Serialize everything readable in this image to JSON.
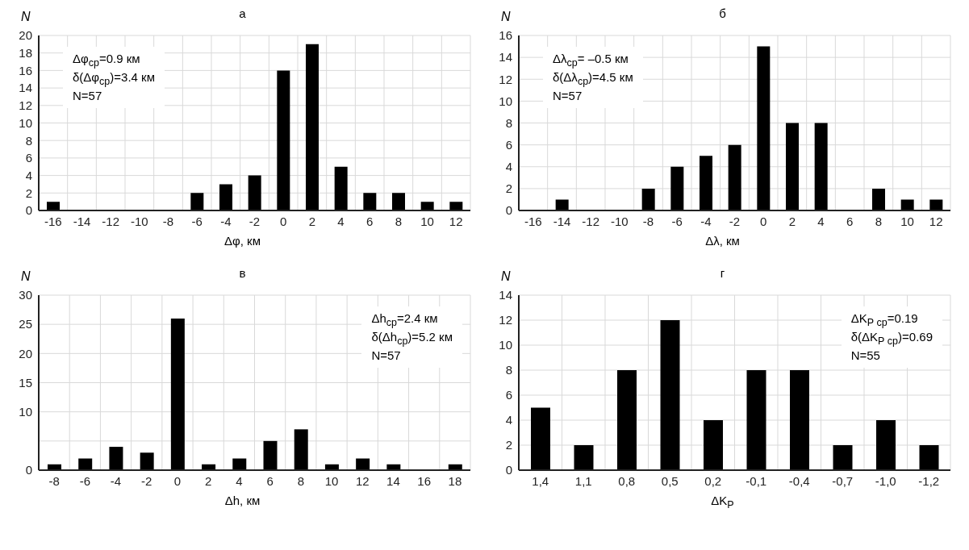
{
  "chart_data": [
    {
      "type": "bar",
      "title": "а",
      "xlabel": "Δφ, км",
      "ylabel": "N",
      "color": "#000000",
      "grid": true,
      "categories": [
        "-16",
        "-14",
        "-12",
        "-10",
        "-8",
        "-6",
        "-4",
        "-2",
        "0",
        "2",
        "4",
        "6",
        "8",
        "10",
        "12"
      ],
      "values": [
        1,
        0,
        0,
        0,
        0,
        2,
        3,
        4,
        16,
        19,
        5,
        2,
        2,
        1,
        1
      ],
      "ylim": [
        0,
        20
      ],
      "yticks": [
        0,
        2,
        4,
        6,
        8,
        10,
        12,
        14,
        16,
        18,
        20
      ],
      "annotations": [
        "Δφ$_{ср}$=0.9 км",
        "δ(Δφ$_{ср}$)=3.4 км",
        "N=57"
      ]
    },
    {
      "type": "bar",
      "title": "б",
      "xlabel": "Δλ, км",
      "ylabel": "N",
      "color": "#000000",
      "grid": true,
      "categories": [
        "-16",
        "-14",
        "-12",
        "-10",
        "-8",
        "-6",
        "-4",
        "-2",
        "0",
        "2",
        "4",
        "6",
        "8",
        "10",
        "12"
      ],
      "values": [
        0,
        1,
        0,
        0,
        2,
        4,
        5,
        6,
        15,
        8,
        8,
        0,
        2,
        1,
        1
      ],
      "ylim": [
        0,
        16
      ],
      "yticks": [
        0,
        2,
        4,
        6,
        8,
        10,
        12,
        14,
        16
      ],
      "annotations": [
        "Δλ$_{ср}$= –0.5 км",
        "δ(Δλ$_{ср}$)=4.5 км",
        "N=57"
      ]
    },
    {
      "type": "bar",
      "title": "в",
      "xlabel": "Δh, км",
      "ylabel": "N",
      "color": "#000000",
      "grid": true,
      "categories": [
        "-8",
        "-6",
        "-4",
        "-2",
        "0",
        "2",
        "4",
        "6",
        "8",
        "10",
        "12",
        "14",
        "16",
        "18"
      ],
      "values": [
        1,
        2,
        4,
        3,
        26,
        1,
        2,
        5,
        7,
        1,
        2,
        1,
        0,
        1
      ],
      "ylim": [
        0,
        30
      ],
      "yticks": [
        0,
        {
          "value": 5,
          "label": null
        },
        10,
        15,
        20,
        25,
        30
      ],
      "annotations": [
        "Δh$_{ср}$=2.4 км",
        "δ(Δh$_{ср}$)=5.2 км",
        "N=57"
      ]
    },
    {
      "type": "bar",
      "title": "г",
      "xlabel": "ΔK$_{Р}$",
      "ylabel": "N",
      "color": "#000000",
      "grid": true,
      "categories": [
        "1,4",
        "1,1",
        "0,8",
        "0,5",
        "0,2",
        "-0,1",
        "-0,4",
        "-0,7",
        "-1,0",
        "-1,2"
      ],
      "values": [
        5,
        2,
        8,
        12,
        4,
        8,
        8,
        2,
        4,
        2
      ],
      "ylim": [
        0,
        14
      ],
      "yticks": [
        0,
        2,
        4,
        6,
        8,
        10,
        12,
        14
      ],
      "annotations": [
        "ΔK$_{Р ср}$=0.19",
        "δ(ΔK$_{Р ср}$)=0.69",
        "N=55"
      ]
    }
  ]
}
